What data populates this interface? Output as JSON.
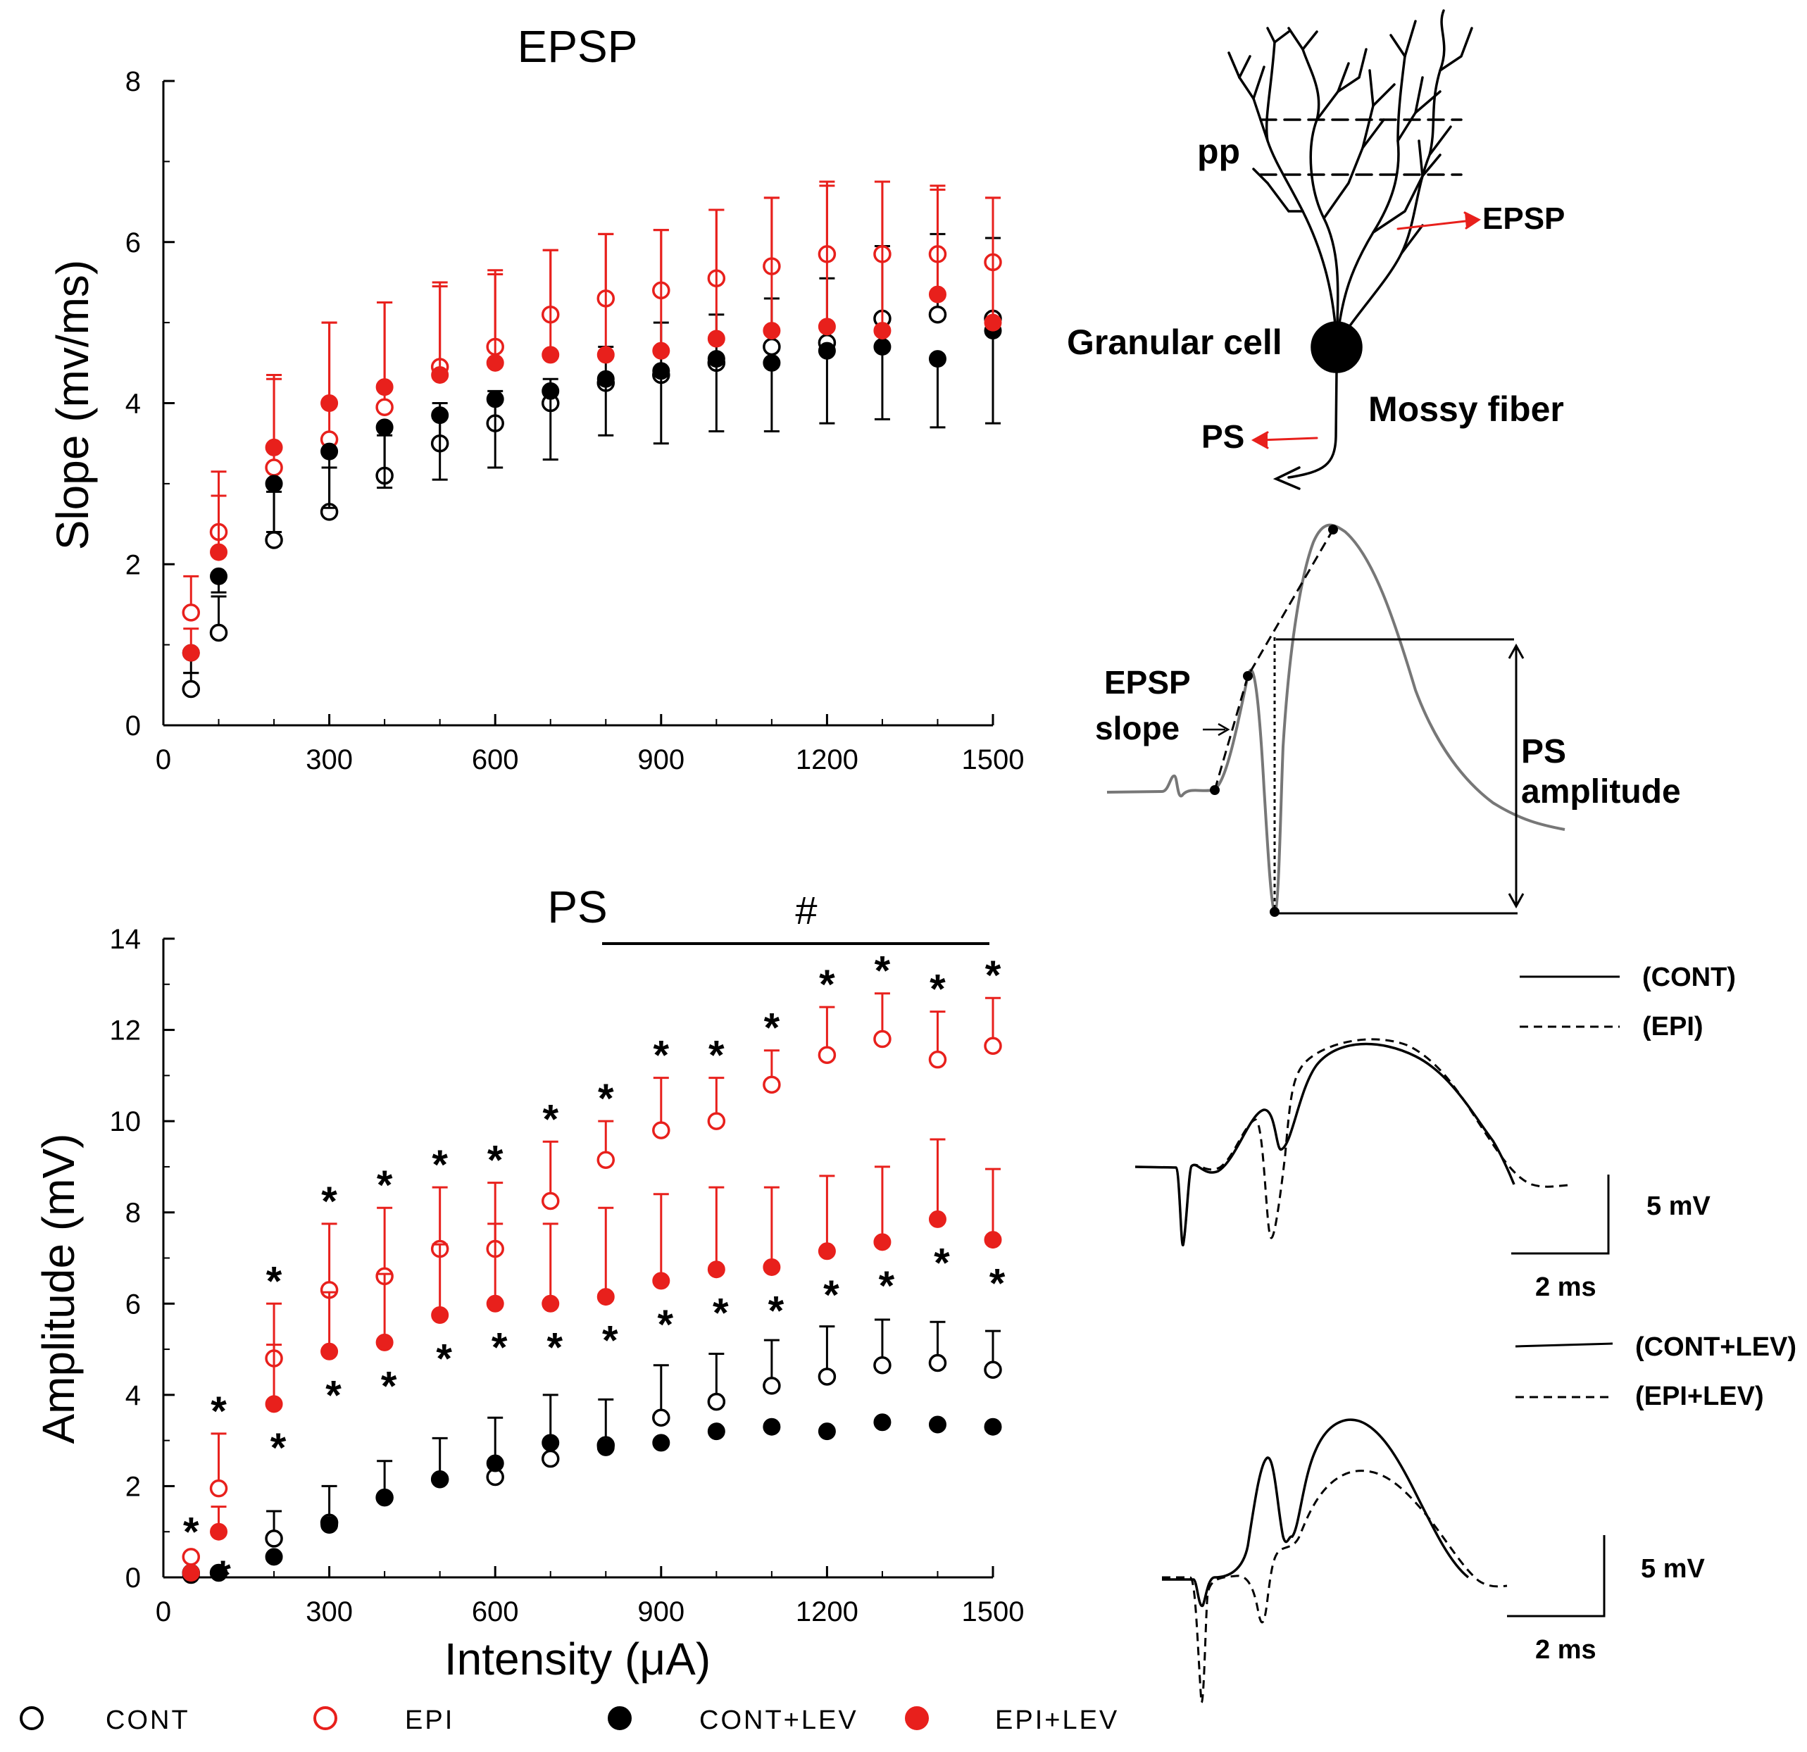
{
  "chart_data": [
    {
      "type": "scatter",
      "title": "EPSP",
      "xlabel": "",
      "ylabel": "Slope (mv/ms)",
      "xlim": [
        0,
        1500
      ],
      "ylim": [
        0,
        8
      ],
      "x_ticks": [
        0,
        300,
        600,
        900,
        1200,
        1500
      ],
      "y_ticks": [
        0,
        2,
        4,
        6,
        8
      ],
      "x": [
        50,
        100,
        200,
        300,
        400,
        500,
        600,
        700,
        800,
        900,
        1000,
        1100,
        1200,
        1300,
        1400,
        1500
      ],
      "series": [
        {
          "name": "CONT",
          "marker": "open",
          "color": "#000000",
          "values": [
            0.45,
            1.15,
            2.3,
            2.65,
            3.1,
            3.5,
            3.75,
            4.0,
            4.25,
            4.35,
            4.5,
            4.7,
            4.75,
            5.05,
            5.1,
            5.05
          ],
          "err": [
            0.2,
            0.45,
            0.6,
            0.55,
            0.5,
            0.5,
            0.4,
            0.3,
            0.45,
            0.65,
            0.6,
            0.6,
            0.8,
            0.9,
            1.0,
            1.0
          ],
          "err_dir": "up"
        },
        {
          "name": "EPI",
          "marker": "open",
          "color": "#e8201c",
          "values": [
            1.4,
            2.4,
            3.2,
            3.55,
            3.95,
            4.45,
            4.7,
            5.1,
            5.3,
            5.4,
            5.55,
            5.7,
            5.85,
            5.85,
            5.85,
            5.75
          ],
          "err": [
            0.45,
            0.75,
            1.1,
            1.45,
            1.3,
            1.0,
            0.9,
            0.8,
            0.8,
            0.75,
            0.85,
            0.85,
            0.85,
            0.9,
            0.8,
            0.8
          ],
          "err_dir": "up"
        },
        {
          "name": "CONT+LEV",
          "marker": "filled",
          "color": "#000000",
          "values": [
            0.9,
            1.85,
            3.0,
            3.4,
            3.7,
            3.85,
            4.05,
            4.15,
            4.3,
            4.4,
            4.55,
            4.5,
            4.65,
            4.7,
            4.55,
            4.9
          ],
          "err": [
            0.25,
            0.2,
            0.6,
            0.7,
            0.75,
            0.8,
            0.85,
            0.85,
            0.7,
            0.9,
            0.9,
            0.85,
            0.9,
            0.9,
            0.85,
            1.15
          ],
          "err_dir": "down"
        },
        {
          "name": "EPI+LEV",
          "marker": "filled",
          "color": "#e8201c",
          "values": [
            0.9,
            2.15,
            3.45,
            4.0,
            4.2,
            4.35,
            4.5,
            4.6,
            4.6,
            4.65,
            4.8,
            4.9,
            4.95,
            4.9,
            5.35,
            5.0
          ],
          "err": [
            0.3,
            0.7,
            0.9,
            1.0,
            1.05,
            1.15,
            1.15,
            1.3,
            1.5,
            1.5,
            1.6,
            1.65,
            1.8,
            1.85,
            1.35,
            1.55
          ],
          "err_dir": "up"
        }
      ]
    },
    {
      "type": "scatter",
      "title": "PS",
      "xlabel": "Intensity (μA)",
      "ylabel": "Amplitude (mV)",
      "xlim": [
        0,
        1500
      ],
      "ylim": [
        0,
        14
      ],
      "x_ticks": [
        0,
        300,
        600,
        900,
        1200,
        1500
      ],
      "y_ticks": [
        0,
        2,
        4,
        6,
        8,
        10,
        12,
        14
      ],
      "x": [
        50,
        100,
        200,
        300,
        400,
        500,
        600,
        700,
        800,
        900,
        1000,
        1100,
        1200,
        1300,
        1400,
        1500
      ],
      "significance_bar": {
        "label": "#",
        "from": 800,
        "to": 1500
      },
      "star_marker": "*",
      "stars_epi": [
        1,
        1,
        1,
        1,
        1,
        1,
        1,
        1,
        1,
        1,
        1,
        1,
        1,
        1,
        1,
        1
      ],
      "stars_epi_lev": [
        0,
        1,
        1,
        1,
        1,
        1,
        1,
        1,
        1,
        1,
        1,
        1,
        1,
        1,
        1,
        1
      ],
      "series": [
        {
          "name": "CONT",
          "marker": "open",
          "color": "#000000",
          "values": [
            0.1,
            0.1,
            0.85,
            1.2,
            1.75,
            2.15,
            2.2,
            2.6,
            2.9,
            3.5,
            3.85,
            4.2,
            4.4,
            4.65,
            4.7,
            4.55
          ],
          "err": [
            0.05,
            0.05,
            0.6,
            0.8,
            0.8,
            0.9,
            1.3,
            1.4,
            1.0,
            1.15,
            1.05,
            1.0,
            1.1,
            1.0,
            0.9,
            0.85
          ],
          "err_dir": "up"
        },
        {
          "name": "EPI",
          "marker": "open",
          "color": "#e8201c",
          "values": [
            0.45,
            1.95,
            4.8,
            6.3,
            6.6,
            7.2,
            7.2,
            8.25,
            9.15,
            9.8,
            10.0,
            10.8,
            11.45,
            11.8,
            11.35,
            11.65
          ],
          "err": [
            0.05,
            1.2,
            1.2,
            1.45,
            1.5,
            1.35,
            1.45,
            1.3,
            0.85,
            1.15,
            0.95,
            0.75,
            1.05,
            1.0,
            1.05,
            1.05
          ],
          "err_dir": "up"
        },
        {
          "name": "CONT+LEV",
          "marker": "filled",
          "color": "#000000",
          "values": [
            0.05,
            0.1,
            0.45,
            1.15,
            1.75,
            2.15,
            2.5,
            2.95,
            2.85,
            2.95,
            3.2,
            3.3,
            3.2,
            3.4,
            3.35,
            3.3
          ],
          "err": [
            0.05,
            0.05,
            0.05,
            0.05,
            0.05,
            0.05,
            0.05,
            0.05,
            0.05,
            0.05,
            0.05,
            0.05,
            0.05,
            0.05,
            0.05,
            0.05
          ],
          "err_dir": "up"
        },
        {
          "name": "EPI+LEV",
          "marker": "filled",
          "color": "#e8201c",
          "values": [
            0.1,
            1.0,
            3.8,
            4.95,
            5.15,
            5.75,
            6.0,
            6.0,
            6.15,
            6.5,
            6.75,
            6.8,
            7.15,
            7.35,
            7.85,
            7.4
          ],
          "err": [
            0.05,
            0.55,
            1.3,
            1.3,
            1.5,
            1.55,
            1.75,
            1.75,
            1.95,
            1.9,
            1.8,
            1.75,
            1.65,
            1.65,
            1.75,
            1.55
          ],
          "err_dir": "up"
        }
      ]
    }
  ],
  "legend": [
    {
      "label": "CONT",
      "marker": "open",
      "color": "#000000"
    },
    {
      "label": "EPI",
      "marker": "open",
      "color": "#e8201c"
    },
    {
      "label": "CONT+LEV",
      "marker": "filled",
      "color": "#000000"
    },
    {
      "label": "EPI+LEV",
      "marker": "filled",
      "color": "#e8201c"
    }
  ],
  "neuron_diagram": {
    "pp_label": "pp",
    "epsp_label": "EPSP",
    "cell_label": "Granular cell",
    "axon_label": "Mossy fiber",
    "ps_label": "PS",
    "arrow_color": "#e8201c"
  },
  "waveform_diagram": {
    "epsp_slope_line1": "EPSP",
    "epsp_slope_line2": "slope",
    "ps_amp_line1": "PS",
    "ps_amp_line2": "amplitude"
  },
  "traces_top": {
    "solid_label": "(CONT)",
    "dashed_label": "(EPI)",
    "scale_v": "5 mV",
    "scale_t": "2 ms"
  },
  "traces_bottom": {
    "solid_label": "(CONT+LEV)",
    "dashed_label": "(EPI+LEV)",
    "scale_v": "5 mV",
    "scale_t": "2 ms"
  }
}
